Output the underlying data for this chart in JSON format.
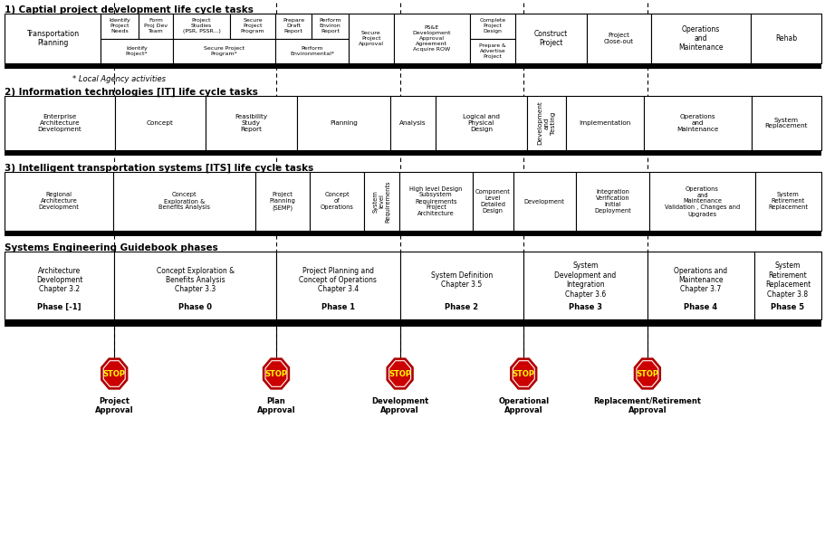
{
  "title1": "1) Captial project development life cycle tasks",
  "title2": "2) Information technologies [IT] life cycle tasks",
  "title3": "3) Intelligent transportation systems [ITS] life cycle tasks",
  "title4": "Systems Engineering Guidebook phases",
  "local_agency": "* Local Agency activities",
  "bg_color": "#ffffff",
  "s1_top_cells": [
    [
      "Identify\nProject\nNeeds",
      0.037
    ],
    [
      "Form\nProj Dev\nTeam",
      0.034
    ],
    [
      "Project\nStudies\n(PSR, PSSR...)",
      0.056
    ],
    [
      "Secure\nProject\nProgram",
      0.044
    ],
    [
      "Prepare\nDraft\nReport",
      0.036
    ],
    [
      "Perform\nEnviron\nReport",
      0.036
    ]
  ],
  "s1_bot_cells": [
    [
      "Identify\nProject*",
      0.071
    ],
    [
      "Secure Project\nProgram*",
      0.1
    ],
    [
      "Perform\nEnvironmental*",
      0.072
    ]
  ],
  "s2_cells": [
    [
      "Enterprise\nArchitecture\nDevelopment",
      0.118,
      false
    ],
    [
      "Concept",
      0.097,
      false
    ],
    [
      "Feasibility\nStudy\nReport",
      0.098,
      false
    ],
    [
      "Planning",
      0.1,
      false
    ],
    [
      "Analysis",
      0.048,
      false
    ],
    [
      "Logical and\nPhysical\nDesign",
      0.098,
      false
    ],
    [
      "Development\nand\nTesting",
      0.042,
      true
    ],
    [
      "Implementation",
      0.083,
      false
    ],
    [
      "Operations\nand\nMaintenance",
      0.115,
      false
    ],
    [
      "System\nReplacement",
      0.075,
      false
    ]
  ],
  "s3_cells": [
    [
      "Regional\nArchitecture\nDevelopment",
      0.118,
      false
    ],
    [
      "Concept\nExploration &\nBenefits Analysis",
      0.155,
      false
    ],
    [
      "Project\nPlanning\n(SEMP)",
      0.059,
      false
    ],
    [
      "Concept\nof\nOperations",
      0.059,
      false
    ],
    [
      "System\nlevel\nRequirements",
      0.038,
      true
    ],
    [
      "High level Design\nSubsystem\nRequirements\nProject\nArchitecture",
      0.08,
      false
    ],
    [
      "Component\nLevel\nDetailed\nDesign",
      0.044,
      false
    ],
    [
      "Development",
      0.068,
      false
    ],
    [
      "Integration\nVerification\nInitial\nDeployment",
      0.08,
      false
    ],
    [
      "Operations\nand\nMaintenance\nValidation , Changes and\nUpgrades",
      0.115,
      false
    ],
    [
      "System\nRetirement\nReplacement",
      0.072,
      false
    ]
  ],
  "s4_cells": [
    [
      "Architecture\nDevelopment\nChapter 3.2",
      "Phase [-1]",
      0.118
    ],
    [
      "Concept Exploration &\nBenefits Analysis\nChapter 3.3",
      "Phase 0",
      0.174
    ],
    [
      "Project Planning and\nConcept of Operations\nChapter 3.4",
      "Phase 1",
      0.133
    ],
    [
      "System Definition\nChapter 3.5",
      "Phase 2",
      0.133
    ],
    [
      "System\nDevelopment and\nIntegration\nChapter 3.6",
      "Phase 3",
      0.133
    ],
    [
      "Operations and\nMaintenance\nChapter 3.7",
      "Phase 4",
      0.115
    ],
    [
      "System\nRetirement\nReplacement\nChapter 3.8",
      "Phase 5",
      0.072
    ]
  ],
  "stop_labels": [
    "Project\nApproval",
    "Plan\nApproval",
    "Development\nApproval",
    "Operational\nApproval",
    "Replacement/Retirement\nApproval"
  ],
  "stop_color": "#cc0000",
  "stop_text_color": "#ffff00"
}
